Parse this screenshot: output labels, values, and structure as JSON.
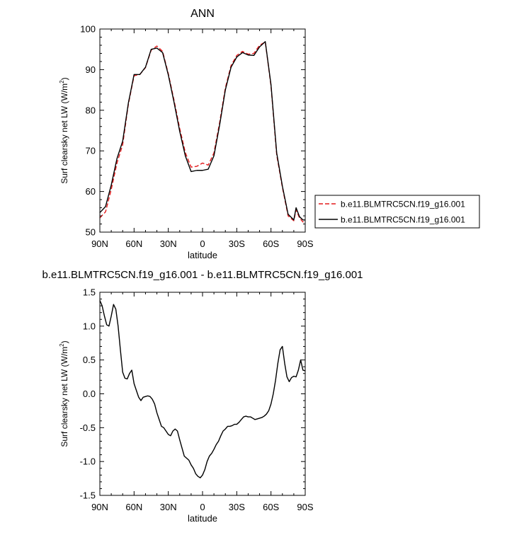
{
  "chart_data": [
    {
      "type": "line",
      "title": "ANN",
      "xlabel": "latitude",
      "ylabel_main": "Surf clearsky net LW (W/m",
      "ylabel_sup": "2",
      "ylabel_close": ")",
      "xlim": [
        90,
        -90
      ],
      "ylim": [
        50,
        100
      ],
      "xticks": [
        {
          "v": 90,
          "label": "90N"
        },
        {
          "v": 60,
          "label": "60N"
        },
        {
          "v": 30,
          "label": "30N"
        },
        {
          "v": 0,
          "label": "0"
        },
        {
          "v": -30,
          "label": "30S"
        },
        {
          "v": -60,
          "label": "60S"
        },
        {
          "v": -90,
          "label": "90S"
        }
      ],
      "yticks": [
        {
          "v": 50,
          "label": "50"
        },
        {
          "v": 60,
          "label": "60"
        },
        {
          "v": 70,
          "label": "70"
        },
        {
          "v": 80,
          "label": "80"
        },
        {
          "v": 90,
          "label": "90"
        },
        {
          "v": 100,
          "label": "100"
        }
      ],
      "legend_position": "right",
      "series": [
        {
          "name": "b.e11.BLMTRC5CN.f19_g16.001",
          "color": "#e41a1c",
          "dash": "dashed",
          "x": [
            90,
            85,
            80,
            75,
            70,
            65,
            60,
            55,
            50,
            45,
            40,
            35,
            30,
            25,
            20,
            15,
            10,
            5,
            0,
            -5,
            -10,
            -15,
            -20,
            -25,
            -30,
            -35,
            -40,
            -45,
            -50,
            -55,
            -60,
            -65,
            -70,
            -75,
            -80,
            -82,
            -85,
            -88,
            -90
          ],
          "y": [
            53.5,
            55.0,
            60.5,
            67.0,
            71.5,
            81.5,
            88.5,
            88.8,
            90.5,
            94.8,
            95.8,
            94.5,
            89.0,
            82.5,
            75.5,
            69.5,
            66.0,
            66.2,
            67.0,
            66.5,
            69.5,
            77.0,
            85.5,
            91.0,
            93.5,
            94.5,
            93.8,
            94.0,
            96.0,
            96.8,
            86.0,
            69.0,
            61.0,
            54.0,
            52.8,
            55.5,
            53.5,
            52.5,
            53.0
          ]
        },
        {
          "name": "b.e11.BLMTRC5CN.f19_g16.001",
          "color": "#000000",
          "dash": "solid",
          "x": [
            90,
            85,
            80,
            75,
            70,
            65,
            60,
            55,
            50,
            45,
            40,
            35,
            30,
            25,
            20,
            15,
            10,
            5,
            0,
            -5,
            -10,
            -15,
            -20,
            -25,
            -30,
            -35,
            -40,
            -45,
            -50,
            -55,
            -60,
            -65,
            -70,
            -75,
            -80,
            -82,
            -85,
            -88,
            -90
          ],
          "y": [
            54.8,
            56.3,
            61.6,
            68.1,
            72.4,
            81.8,
            88.8,
            88.8,
            90.6,
            95.0,
            95.3,
            94.2,
            88.7,
            82.0,
            74.8,
            68.7,
            64.9,
            65.2,
            65.2,
            65.5,
            68.8,
            76.4,
            85.0,
            90.6,
            93.1,
            94.2,
            93.6,
            93.5,
            95.6,
            96.9,
            86.3,
            69.5,
            61.3,
            54.4,
            53.0,
            56.0,
            53.8,
            53.0,
            53.0
          ]
        }
      ]
    },
    {
      "type": "line",
      "title": "b.e11.BLMTRC5CN.f19_g16.001 - b.e11.BLMTRC5CN.f19_g16.001",
      "xlabel": "latitude",
      "ylabel_main": "Surf clearsky net LW (W/m",
      "ylabel_sup": "2",
      "ylabel_close": ")",
      "xlim": [
        90,
        -90
      ],
      "ylim": [
        -1.5,
        1.5
      ],
      "xticks": [
        {
          "v": 90,
          "label": "90N"
        },
        {
          "v": 60,
          "label": "60N"
        },
        {
          "v": 30,
          "label": "30N"
        },
        {
          "v": 0,
          "label": "0"
        },
        {
          "v": -30,
          "label": "30S"
        },
        {
          "v": -60,
          "label": "60S"
        },
        {
          "v": -90,
          "label": "90S"
        }
      ],
      "yticks": [
        {
          "v": -1.5,
          "label": "-1.5"
        },
        {
          "v": -1.0,
          "label": "-1.0"
        },
        {
          "v": -0.5,
          "label": "-0.5"
        },
        {
          "v": 0.0,
          "label": "0.0"
        },
        {
          "v": 0.5,
          "label": "0.5"
        },
        {
          "v": 1.0,
          "label": "1.0"
        },
        {
          "v": 1.5,
          "label": "1.5"
        }
      ],
      "series": [
        {
          "color": "#000000",
          "dash": "solid",
          "x": [
            90,
            88,
            86,
            84,
            82,
            80,
            78,
            76,
            74,
            72,
            70,
            68,
            66,
            64,
            62,
            60,
            58,
            56,
            54,
            52,
            50,
            48,
            46,
            44,
            42,
            40,
            38,
            36,
            34,
            32,
            30,
            28,
            26,
            24,
            22,
            20,
            18,
            16,
            14,
            12,
            10,
            8,
            6,
            4,
            2,
            0,
            -2,
            -4,
            -6,
            -8,
            -10,
            -12,
            -14,
            -16,
            -18,
            -20,
            -22,
            -24,
            -26,
            -28,
            -30,
            -32,
            -34,
            -36,
            -38,
            -40,
            -42,
            -44,
            -46,
            -48,
            -50,
            -52,
            -54,
            -56,
            -58,
            -60,
            -62,
            -64,
            -66,
            -68,
            -70,
            -72,
            -74,
            -76,
            -78,
            -80,
            -82,
            -84,
            -86,
            -88,
            -90
          ],
          "y": [
            1.38,
            1.3,
            1.15,
            1.02,
            1.0,
            1.15,
            1.32,
            1.25,
            1.0,
            0.65,
            0.32,
            0.23,
            0.22,
            0.3,
            0.35,
            0.15,
            0.05,
            -0.05,
            -0.1,
            -0.05,
            -0.04,
            -0.03,
            -0.04,
            -0.08,
            -0.15,
            -0.28,
            -0.38,
            -0.48,
            -0.5,
            -0.55,
            -0.6,
            -0.62,
            -0.55,
            -0.52,
            -0.55,
            -0.68,
            -0.8,
            -0.92,
            -0.95,
            -0.98,
            -1.05,
            -1.1,
            -1.18,
            -1.22,
            -1.24,
            -1.2,
            -1.12,
            -1.0,
            -0.92,
            -0.88,
            -0.82,
            -0.75,
            -0.7,
            -0.62,
            -0.55,
            -0.52,
            -0.48,
            -0.48,
            -0.47,
            -0.45,
            -0.45,
            -0.42,
            -0.38,
            -0.34,
            -0.33,
            -0.34,
            -0.34,
            -0.36,
            -0.38,
            -0.37,
            -0.36,
            -0.35,
            -0.33,
            -0.3,
            -0.25,
            -0.15,
            0.0,
            0.2,
            0.45,
            0.65,
            0.7,
            0.45,
            0.25,
            0.18,
            0.24,
            0.26,
            0.25,
            0.35,
            0.5,
            0.35,
            0.34
          ]
        }
      ]
    }
  ]
}
